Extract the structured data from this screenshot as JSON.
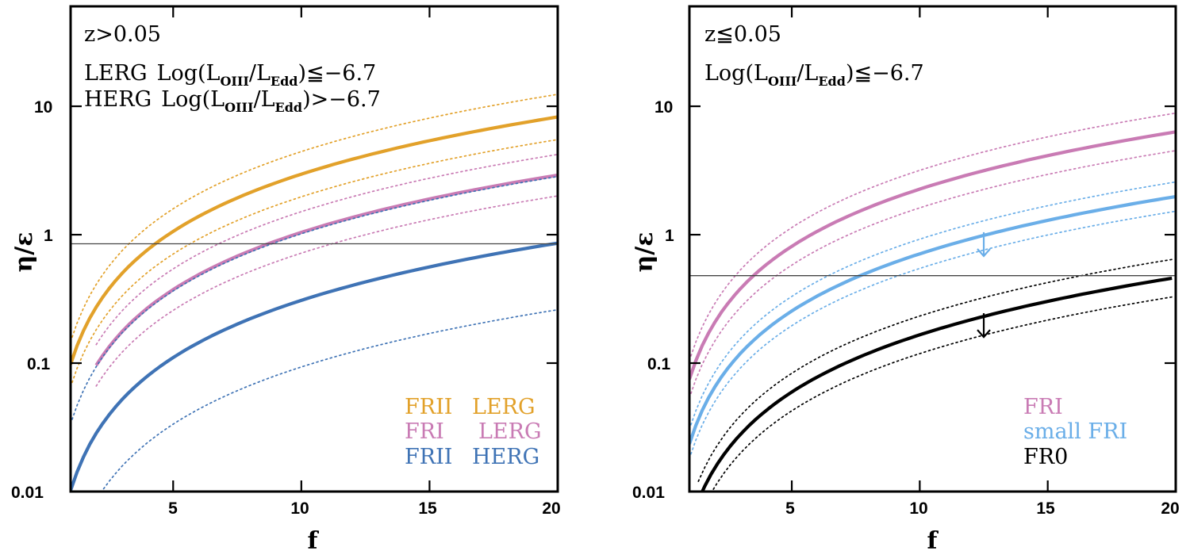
{
  "chart_data": [
    {
      "type": "line",
      "panel": "left",
      "xlabel": "f",
      "ylabel": "η/ε",
      "xscale": "linear",
      "yscale": "log",
      "xlim": [
        1,
        20
      ],
      "ylim": [
        0.01,
        60
      ],
      "xticks": [
        5,
        10,
        15,
        20
      ],
      "xtick_labels": [
        "5",
        "10",
        "15",
        "20"
      ],
      "yticks": [
        0.01,
        0.1,
        1,
        10
      ],
      "ytick_labels": [
        "0.01",
        "0.1",
        "1",
        "10"
      ],
      "annotations": [
        "z>0.05",
        "LERG Log(L_OIII/L_Edd)≦−6.7",
        "HERG Log(L_OIII/L_Edd)>−6.7"
      ],
      "annotation_parts": {
        "z": "z>0.05",
        "lerg_name": "LERG",
        "herg_name": "HERG",
        "log": "Log(L",
        "sub_oiii": "OIII",
        "slash": "/L",
        "sub_edd": "Edd",
        "lerg_cond": ")≦−6.7",
        "herg_cond": ")>−6.7"
      },
      "hline": 0.85,
      "series": [
        {
          "name": "FRII LERG",
          "color": "#e2a12a",
          "style": "solid",
          "x_start": 1,
          "a": 0.098,
          "b": 1.48,
          "band_factor": 1.5
        },
        {
          "name": "FRI LERG",
          "color": "#c97bb4",
          "style": "solid",
          "x_start": 2,
          "a": 0.0345,
          "b": 1.48,
          "band_factor": 1.45
        },
        {
          "name": "FRII HERG",
          "color": "#3f73b5",
          "style": "solid",
          "x_start": 1,
          "a": 0.0102,
          "b": 1.48,
          "band_factor": 3.3
        }
      ],
      "legend": [
        {
          "label_a": "FRII",
          "label_b": "LERG",
          "color": "#e2a12a"
        },
        {
          "label_a": "FRI",
          "label_b": "LERG",
          "color": "#c97bb4"
        },
        {
          "label_a": "FRII",
          "label_b": "HERG",
          "color": "#3f73b5"
        }
      ],
      "legend_position": "bottom-right"
    },
    {
      "type": "line",
      "panel": "right",
      "xlabel": "f",
      "ylabel": "η/ε",
      "xscale": "linear",
      "yscale": "log",
      "xlim": [
        1,
        20
      ],
      "ylim": [
        0.01,
        60
      ],
      "xticks": [
        5,
        10,
        15,
        20
      ],
      "xtick_labels": [
        "5",
        "10",
        "15",
        "20"
      ],
      "yticks": [
        0.01,
        0.1,
        1,
        10
      ],
      "ytick_labels": [
        "0.01",
        "0.1",
        "1",
        "10"
      ],
      "annotations": [
        "z≦0.05",
        "Log(L_OIII/L_Edd)≦−6.7"
      ],
      "annotation_parts": {
        "z": "z≦0.05",
        "log": "Log(L",
        "sub_oiii": "OIII",
        "slash": "/L",
        "sub_edd": "Edd",
        "cond": ")≦−6.7"
      },
      "hline": 0.48,
      "upper_limit_arrows": [
        {
          "series": "small FRI",
          "x": 12.5,
          "color": "#6aaee8"
        },
        {
          "series": "FR0",
          "x": 12.5,
          "color": "#000000"
        }
      ],
      "series": [
        {
          "name": "FRI",
          "color": "#c97bb4",
          "style": "solid",
          "x_start": 1,
          "a": 0.075,
          "b": 1.48,
          "band_factor": 1.4
        },
        {
          "name": "small FRI",
          "color": "#6aaee8",
          "style": "solid",
          "x_start": 1,
          "a": 0.0235,
          "b": 1.48,
          "band_factor": 1.3
        },
        {
          "name": "FR0",
          "color": "#000000",
          "style": "solid",
          "x_start": 1.35,
          "a": 0.0055,
          "b": 1.48,
          "band_factor": 1.4
        }
      ],
      "legend": [
        {
          "label": "FRI",
          "color": "#c97bb4"
        },
        {
          "label": "small FRI",
          "color": "#6aaee8"
        },
        {
          "label": "FR0",
          "color": "#000000"
        }
      ],
      "legend_position": "bottom-right"
    }
  ]
}
